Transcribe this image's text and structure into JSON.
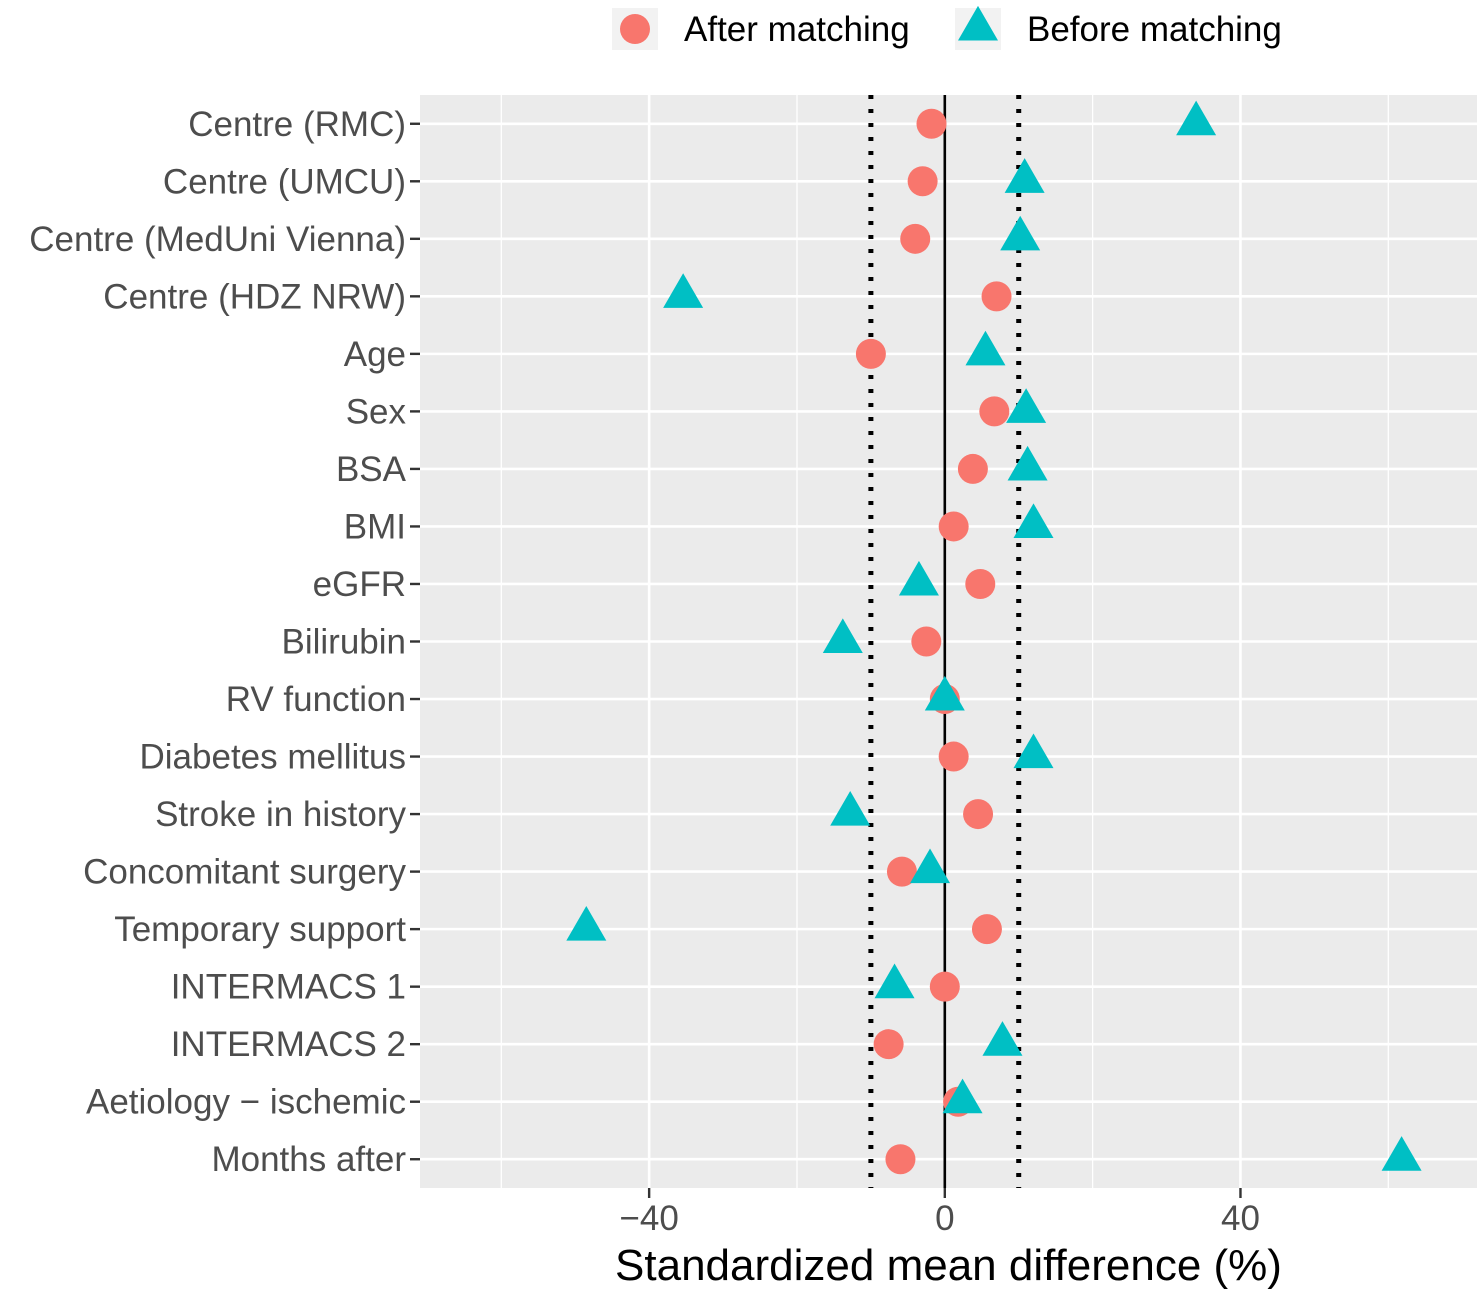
{
  "chart_data": {
    "type": "scatter",
    "title": "",
    "xlabel": "Standardized mean difference (%)",
    "ylabel": "",
    "xlim": [
      -71,
      72
    ],
    "x_ticks": [
      -40,
      0,
      40
    ],
    "x_tick_labels": [
      "−40",
      "0",
      "40"
    ],
    "threshold_lines": [
      -10,
      10
    ],
    "zero_line": 0,
    "grid": true,
    "legend_position": "top",
    "categories": [
      "Centre (RMC)",
      "Centre (UMCU)",
      "Centre (MedUni Vienna)",
      "Centre (HDZ NRW)",
      "Age",
      "Sex",
      "BSA",
      "BMI",
      "eGFR",
      "Bilirubin",
      "RV function",
      "Diabetes mellitus",
      "Stroke in history",
      "Concomitant surgery",
      "Temporary support",
      "INTERMACS 1",
      "INTERMACS 2",
      "Aetiology − ischemic",
      "Months after"
    ],
    "series": [
      {
        "name": "After matching",
        "marker": "circle",
        "color": "#F8766D",
        "values": [
          -1.8,
          -3.0,
          -4.0,
          7.0,
          -10.0,
          6.7,
          3.8,
          1.2,
          4.8,
          -2.5,
          0.0,
          1.2,
          4.5,
          -5.8,
          5.7,
          0.0,
          -7.6,
          1.8,
          -6.0
        ]
      },
      {
        "name": "Before matching",
        "marker": "triangle",
        "color": "#00BFC4",
        "values": [
          34.0,
          10.8,
          10.2,
          -35.4,
          5.5,
          11.0,
          11.2,
          12.0,
          -3.5,
          -13.8,
          0.0,
          12.0,
          -12.8,
          -2.0,
          -48.5,
          -6.8,
          7.8,
          2.4,
          61.8
        ]
      }
    ]
  }
}
